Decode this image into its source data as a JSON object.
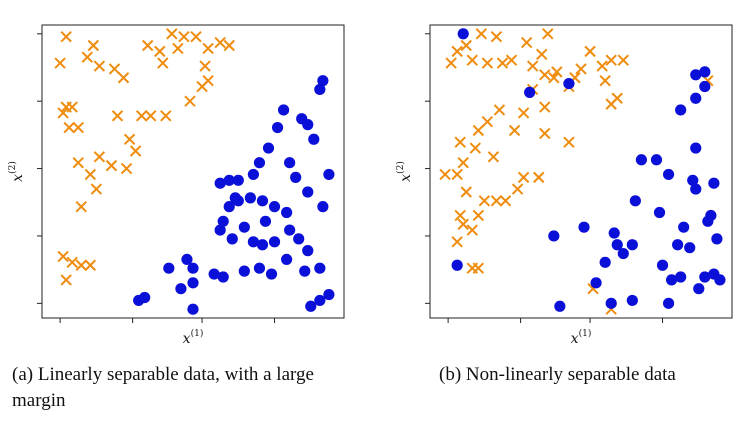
{
  "captions": [
    "(a) Linearly separable data, with a large margin",
    "(b) Non-linearly separable data"
  ],
  "colors": {
    "cross": "#ef8c0e",
    "dot": "#0a10d8",
    "frame": "#222222"
  },
  "chart_data": [
    {
      "type": "scatter",
      "title": "",
      "xlabel": "x(1)",
      "ylabel": "x(2)",
      "xlabel_parts": {
        "base": "x",
        "sup": "(1)"
      },
      "ylabel_parts": {
        "base": "x",
        "sup": "(2)"
      },
      "xlim": [
        0,
        1
      ],
      "ylim": [
        0,
        1
      ],
      "grid": false,
      "series": [
        {
          "marker": "x",
          "color": "#ef8c0e",
          "points": [
            [
              0.08,
              0.96
            ],
            [
              0.06,
              0.87
            ],
            [
              0.17,
              0.93
            ],
            [
              0.15,
              0.89
            ],
            [
              0.19,
              0.86
            ],
            [
              0.27,
              0.82
            ],
            [
              0.24,
              0.85
            ],
            [
              0.35,
              0.93
            ],
            [
              0.43,
              0.97
            ],
            [
              0.47,
              0.96
            ],
            [
              0.51,
              0.96
            ],
            [
              0.45,
              0.92
            ],
            [
              0.4,
              0.87
            ],
            [
              0.39,
              0.91
            ],
            [
              0.55,
              0.92
            ],
            [
              0.59,
              0.94
            ],
            [
              0.62,
              0.93
            ],
            [
              0.54,
              0.86
            ],
            [
              0.55,
              0.81
            ],
            [
              0.53,
              0.79
            ],
            [
              0.49,
              0.74
            ],
            [
              0.08,
              0.72
            ],
            [
              0.1,
              0.72
            ],
            [
              0.07,
              0.7
            ],
            [
              0.12,
              0.65
            ],
            [
              0.09,
              0.65
            ],
            [
              0.25,
              0.69
            ],
            [
              0.33,
              0.69
            ],
            [
              0.36,
              0.69
            ],
            [
              0.41,
              0.69
            ],
            [
              0.19,
              0.55
            ],
            [
              0.23,
              0.52
            ],
            [
              0.29,
              0.61
            ],
            [
              0.28,
              0.51
            ],
            [
              0.31,
              0.57
            ],
            [
              0.12,
              0.53
            ],
            [
              0.16,
              0.49
            ],
            [
              0.18,
              0.44
            ],
            [
              0.13,
              0.38
            ],
            [
              0.07,
              0.21
            ],
            [
              0.1,
              0.19
            ],
            [
              0.13,
              0.18
            ],
            [
              0.16,
              0.18
            ],
            [
              0.08,
              0.13
            ]
          ]
        },
        {
          "marker": "o",
          "color": "#0a10d8",
          "points": [
            [
              0.93,
              0.81
            ],
            [
              0.92,
              0.78
            ],
            [
              0.8,
              0.71
            ],
            [
              0.86,
              0.68
            ],
            [
              0.88,
              0.66
            ],
            [
              0.9,
              0.61
            ],
            [
              0.78,
              0.65
            ],
            [
              0.75,
              0.58
            ],
            [
              0.72,
              0.53
            ],
            [
              0.82,
              0.53
            ],
            [
              0.84,
              0.48
            ],
            [
              0.95,
              0.49
            ],
            [
              0.88,
              0.43
            ],
            [
              0.93,
              0.38
            ],
            [
              0.59,
              0.46
            ],
            [
              0.62,
              0.47
            ],
            [
              0.65,
              0.47
            ],
            [
              0.7,
              0.49
            ],
            [
              0.64,
              0.41
            ],
            [
              0.62,
              0.38
            ],
            [
              0.6,
              0.33
            ],
            [
              0.59,
              0.3
            ],
            [
              0.63,
              0.27
            ],
            [
              0.65,
              0.4
            ],
            [
              0.69,
              0.41
            ],
            [
              0.73,
              0.4
            ],
            [
              0.77,
              0.38
            ],
            [
              0.81,
              0.36
            ],
            [
              0.74,
              0.33
            ],
            [
              0.67,
              0.31
            ],
            [
              0.7,
              0.26
            ],
            [
              0.73,
              0.25
            ],
            [
              0.77,
              0.26
            ],
            [
              0.82,
              0.3
            ],
            [
              0.85,
              0.27
            ],
            [
              0.88,
              0.23
            ],
            [
              0.81,
              0.2
            ],
            [
              0.87,
              0.16
            ],
            [
              0.92,
              0.17
            ],
            [
              0.95,
              0.08
            ],
            [
              0.92,
              0.06
            ],
            [
              0.89,
              0.04
            ],
            [
              0.48,
              0.2
            ],
            [
              0.5,
              0.17
            ],
            [
              0.5,
              0.12
            ],
            [
              0.57,
              0.15
            ],
            [
              0.6,
              0.14
            ],
            [
              0.67,
              0.16
            ],
            [
              0.72,
              0.17
            ],
            [
              0.76,
              0.15
            ],
            [
              0.42,
              0.17
            ],
            [
              0.46,
              0.1
            ],
            [
              0.5,
              0.03
            ],
            [
              0.32,
              0.06
            ],
            [
              0.34,
              0.07
            ]
          ]
        }
      ]
    },
    {
      "type": "scatter",
      "title": "",
      "xlabel": "x(1)",
      "ylabel": "x(2)",
      "xlabel_parts": {
        "base": "x",
        "sup": "(1)"
      },
      "ylabel_parts": {
        "base": "x",
        "sup": "(2)"
      },
      "xlim": [
        0,
        1
      ],
      "ylim": [
        0,
        1
      ],
      "grid": false,
      "series": [
        {
          "marker": "x",
          "color": "#ef8c0e",
          "points": [
            [
              0.07,
              0.87
            ],
            [
              0.09,
              0.91
            ],
            [
              0.12,
              0.93
            ],
            [
              0.14,
              0.88
            ],
            [
              0.17,
              0.97
            ],
            [
              0.19,
              0.87
            ],
            [
              0.24,
              0.87
            ],
            [
              0.22,
              0.96
            ],
            [
              0.27,
              0.88
            ],
            [
              0.32,
              0.94
            ],
            [
              0.37,
              0.9
            ],
            [
              0.39,
              0.97
            ],
            [
              0.34,
              0.86
            ],
            [
              0.38,
              0.83
            ],
            [
              0.42,
              0.84
            ],
            [
              0.41,
              0.82
            ],
            [
              0.48,
              0.82
            ],
            [
              0.53,
              0.91
            ],
            [
              0.5,
              0.85
            ],
            [
              0.46,
              0.79
            ],
            [
              0.6,
              0.88
            ],
            [
              0.57,
              0.86
            ],
            [
              0.64,
              0.88
            ],
            [
              0.58,
              0.81
            ],
            [
              0.6,
              0.73
            ],
            [
              0.62,
              0.75
            ],
            [
              0.34,
              0.78
            ],
            [
              0.38,
              0.72
            ],
            [
              0.31,
              0.7
            ],
            [
              0.23,
              0.71
            ],
            [
              0.19,
              0.67
            ],
            [
              0.16,
              0.64
            ],
            [
              0.28,
              0.64
            ],
            [
              0.1,
              0.6
            ],
            [
              0.15,
              0.58
            ],
            [
              0.21,
              0.55
            ],
            [
              0.38,
              0.63
            ],
            [
              0.46,
              0.6
            ],
            [
              0.05,
              0.49
            ],
            [
              0.09,
              0.49
            ],
            [
              0.11,
              0.53
            ],
            [
              0.12,
              0.43
            ],
            [
              0.18,
              0.4
            ],
            [
              0.22,
              0.4
            ],
            [
              0.25,
              0.4
            ],
            [
              0.29,
              0.44
            ],
            [
              0.31,
              0.48
            ],
            [
              0.36,
              0.48
            ],
            [
              0.1,
              0.35
            ],
            [
              0.11,
              0.32
            ],
            [
              0.14,
              0.3
            ],
            [
              0.16,
              0.35
            ],
            [
              0.09,
              0.26
            ],
            [
              0.14,
              0.17
            ],
            [
              0.16,
              0.17
            ],
            [
              0.54,
              0.1
            ],
            [
              0.6,
              0.03
            ],
            [
              0.92,
              0.81
            ]
          ]
        },
        {
          "marker": "o",
          "color": "#0a10d8",
          "points": [
            [
              0.11,
              0.97
            ],
            [
              0.33,
              0.77
            ],
            [
              0.46,
              0.8
            ],
            [
              0.88,
              0.83
            ],
            [
              0.91,
              0.84
            ],
            [
              0.91,
              0.79
            ],
            [
              0.88,
              0.75
            ],
            [
              0.83,
              0.71
            ],
            [
              0.7,
              0.54
            ],
            [
              0.75,
              0.54
            ],
            [
              0.88,
              0.58
            ],
            [
              0.79,
              0.49
            ],
            [
              0.87,
              0.47
            ],
            [
              0.88,
              0.44
            ],
            [
              0.94,
              0.46
            ],
            [
              0.68,
              0.4
            ],
            [
              0.76,
              0.36
            ],
            [
              0.84,
              0.31
            ],
            [
              0.82,
              0.25
            ],
            [
              0.86,
              0.24
            ],
            [
              0.93,
              0.35
            ],
            [
              0.92,
              0.33
            ],
            [
              0.95,
              0.27
            ],
            [
              0.61,
              0.29
            ],
            [
              0.62,
              0.25
            ],
            [
              0.64,
              0.22
            ],
            [
              0.67,
              0.25
            ],
            [
              0.41,
              0.28
            ],
            [
              0.51,
              0.31
            ],
            [
              0.58,
              0.19
            ],
            [
              0.55,
              0.12
            ],
            [
              0.67,
              0.06
            ],
            [
              0.6,
              0.05
            ],
            [
              0.43,
              0.04
            ],
            [
              0.8,
              0.13
            ],
            [
              0.83,
              0.14
            ],
            [
              0.89,
              0.1
            ],
            [
              0.91,
              0.14
            ],
            [
              0.94,
              0.15
            ],
            [
              0.96,
              0.13
            ],
            [
              0.09,
              0.18
            ],
            [
              0.79,
              0.05
            ],
            [
              0.77,
              0.18
            ]
          ]
        }
      ]
    }
  ]
}
